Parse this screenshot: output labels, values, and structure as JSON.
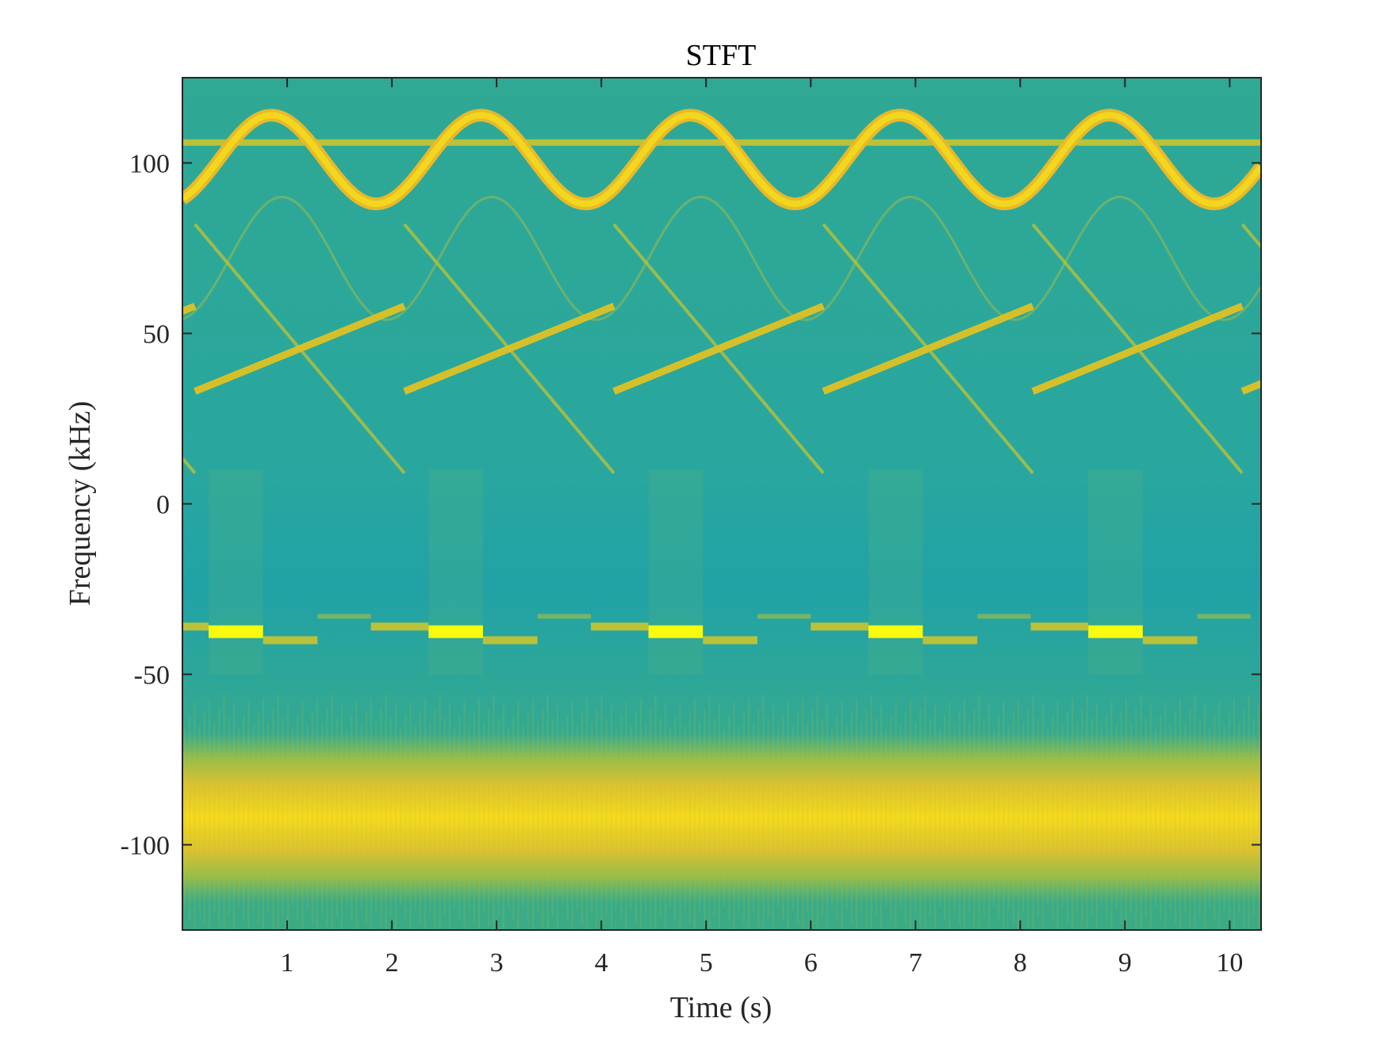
{
  "chart_data": {
    "type": "heatmap",
    "title": "STFT",
    "xlabel": "Time (s)",
    "ylabel": "Frequency (kHz)",
    "xlim": [
      0,
      10.3
    ],
    "ylim": [
      -125,
      125
    ],
    "xticks": [
      1,
      2,
      3,
      4,
      5,
      6,
      7,
      8,
      9,
      10
    ],
    "xtick_labels": [
      "1",
      "2",
      "3",
      "4",
      "5",
      "6",
      "7",
      "8",
      "9",
      "10"
    ],
    "yticks": [
      100,
      50,
      0,
      -50,
      -100
    ],
    "ytick_labels": [
      "100",
      "50",
      "0",
      "-50",
      "-100"
    ],
    "grid": false,
    "colormap": "parula",
    "colors": {
      "background_low": "#1fa3a6",
      "background_mid": "#3aab8f",
      "signal_mid": "#b9c23a",
      "signal_high": "#f3d71e",
      "peak": "#f9fb0e"
    },
    "components": [
      {
        "kind": "sinusoidal_fm",
        "center_khz": 101,
        "amplitude_khz": 13,
        "period_s": 2.0,
        "peak_at_s": 0.85
      },
      {
        "kind": "tone",
        "freq_khz": 106,
        "start_s": 0,
        "end_s": 10.3
      },
      {
        "kind": "linear_chirp_up",
        "period_s": 2.0,
        "first_start_s": 0.12,
        "from_khz": 33,
        "to_khz": 58
      },
      {
        "kind": "linear_chirp_down",
        "period_s": 2.0,
        "first_start_s": 0.12,
        "from_khz": 82,
        "to_khz": 9
      },
      {
        "kind": "faint_sinusoid",
        "center_khz": 72,
        "amplitude_khz": 10,
        "period_s": 2.0
      },
      {
        "kind": "burst_tone",
        "freq_khz": -37.5,
        "period_s": 2.1,
        "first_start_s": 0.25,
        "duration_s": 0.52,
        "band_khz": [
          -50,
          10
        ]
      },
      {
        "kind": "stepped_tone",
        "segments_khz": [
          -40,
          -33,
          -36
        ]
      },
      {
        "kind": "noise_band",
        "center_khz": -92,
        "width_khz": 40
      }
    ]
  }
}
